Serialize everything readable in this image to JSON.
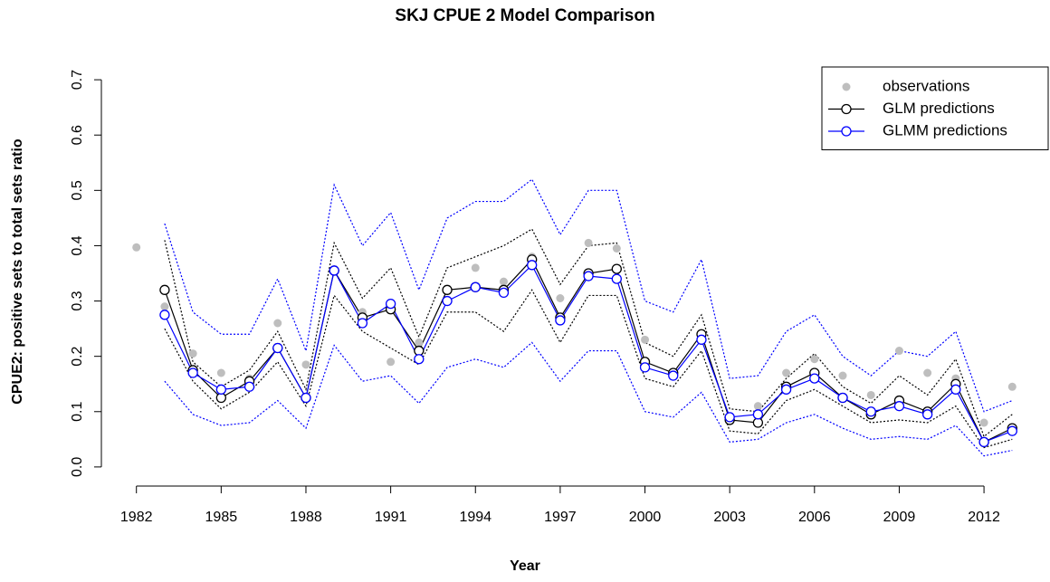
{
  "chart_data": {
    "type": "line",
    "title": "SKJ CPUE 2 Model Comparison",
    "xlabel": "Year",
    "ylabel": "CPUE2: positive sets to total sets ratio",
    "x": [
      1982,
      1983,
      1984,
      1985,
      1986,
      1987,
      1988,
      1989,
      1990,
      1991,
      1992,
      1993,
      1994,
      1995,
      1996,
      1997,
      1998,
      1999,
      2000,
      2001,
      2002,
      2003,
      2004,
      2005,
      2006,
      2007,
      2008,
      2009,
      2010,
      2011,
      2012,
      2013
    ],
    "xlim": [
      1980.76,
      2014.24
    ],
    "xticks": [
      1982,
      1985,
      1988,
      1991,
      1994,
      1997,
      2000,
      2003,
      2006,
      2009,
      2012
    ],
    "ylim": [
      -0.028,
      0.728
    ],
    "yticks": [
      {
        "value": 0,
        "label": "0.0"
      },
      0.1,
      0.2,
      0.3,
      0.4,
      0.5,
      0.6,
      0.7
    ],
    "legend": "top-right",
    "series": [
      {
        "name": "observations",
        "color": "#bebebe",
        "marker": "dot",
        "line": "none",
        "values": [
          0.397,
          0.29,
          0.205,
          0.17,
          0.16,
          0.26,
          0.185,
          0.355,
          0.28,
          0.19,
          0.225,
          0.32,
          0.36,
          0.335,
          0.38,
          0.305,
          0.405,
          0.395,
          0.23,
          0.17,
          0.23,
          0.09,
          0.11,
          0.17,
          0.195,
          0.165,
          0.13,
          0.21,
          0.17,
          0.16,
          0.08,
          0.145
        ]
      },
      {
        "name": "GLM predictions",
        "color": "#000000",
        "marker": "circle",
        "line": "solid",
        "values": [
          null,
          0.32,
          0.175,
          0.125,
          0.155,
          0.215,
          0.125,
          0.355,
          0.27,
          0.285,
          0.21,
          0.32,
          0.325,
          0.32,
          0.375,
          0.27,
          0.35,
          0.358,
          0.19,
          0.17,
          0.24,
          0.085,
          0.08,
          0.145,
          0.17,
          0.125,
          0.095,
          0.12,
          0.1,
          0.15,
          0.045,
          0.07
        ]
      },
      {
        "name": "GLMM predictions",
        "color": "#0000ff",
        "marker": "circle",
        "line": "solid",
        "values": [
          null,
          0.275,
          0.17,
          0.14,
          0.145,
          0.215,
          0.125,
          0.355,
          0.26,
          0.295,
          0.195,
          0.3,
          0.325,
          0.315,
          0.365,
          0.265,
          0.345,
          0.34,
          0.18,
          0.165,
          0.23,
          0.09,
          0.095,
          0.14,
          0.16,
          0.125,
          0.1,
          0.11,
          0.095,
          0.14,
          0.045,
          0.065
        ]
      },
      {
        "color": "#000000",
        "marker": "none",
        "line": "dotted",
        "values": [
          null,
          0.41,
          0.19,
          0.145,
          0.175,
          0.245,
          0.14,
          0.405,
          0.305,
          0.36,
          0.235,
          0.36,
          0.38,
          0.4,
          0.43,
          0.33,
          0.4,
          0.405,
          0.225,
          0.2,
          0.275,
          0.105,
          0.1,
          0.16,
          0.205,
          0.145,
          0.115,
          0.165,
          0.13,
          0.195,
          0.055,
          0.095
        ]
      },
      {
        "color": "#000000",
        "marker": "none",
        "line": "dotted",
        "values": [
          null,
          0.25,
          0.155,
          0.105,
          0.135,
          0.19,
          0.11,
          0.31,
          0.245,
          0.215,
          0.185,
          0.28,
          0.28,
          0.245,
          0.32,
          0.225,
          0.31,
          0.31,
          0.16,
          0.145,
          0.21,
          0.065,
          0.06,
          0.12,
          0.14,
          0.11,
          0.08,
          0.085,
          0.08,
          0.11,
          0.035,
          0.05
        ]
      },
      {
        "color": "#0000ff",
        "marker": "none",
        "line": "dotted",
        "values": [
          null,
          0.44,
          0.28,
          0.24,
          0.24,
          0.34,
          0.21,
          0.51,
          0.4,
          0.46,
          0.32,
          0.45,
          0.48,
          0.48,
          0.52,
          0.42,
          0.5,
          0.5,
          0.3,
          0.28,
          0.375,
          0.16,
          0.165,
          0.245,
          0.275,
          0.2,
          0.165,
          0.21,
          0.2,
          0.245,
          0.1,
          0.12
        ]
      },
      {
        "color": "#0000ff",
        "marker": "none",
        "line": "dotted",
        "values": [
          null,
          0.155,
          0.095,
          0.075,
          0.08,
          0.12,
          0.07,
          0.22,
          0.155,
          0.165,
          0.115,
          0.18,
          0.195,
          0.18,
          0.225,
          0.155,
          0.21,
          0.21,
          0.1,
          0.09,
          0.135,
          0.045,
          0.05,
          0.08,
          0.095,
          0.07,
          0.05,
          0.055,
          0.05,
          0.075,
          0.02,
          0.03
        ]
      }
    ]
  }
}
